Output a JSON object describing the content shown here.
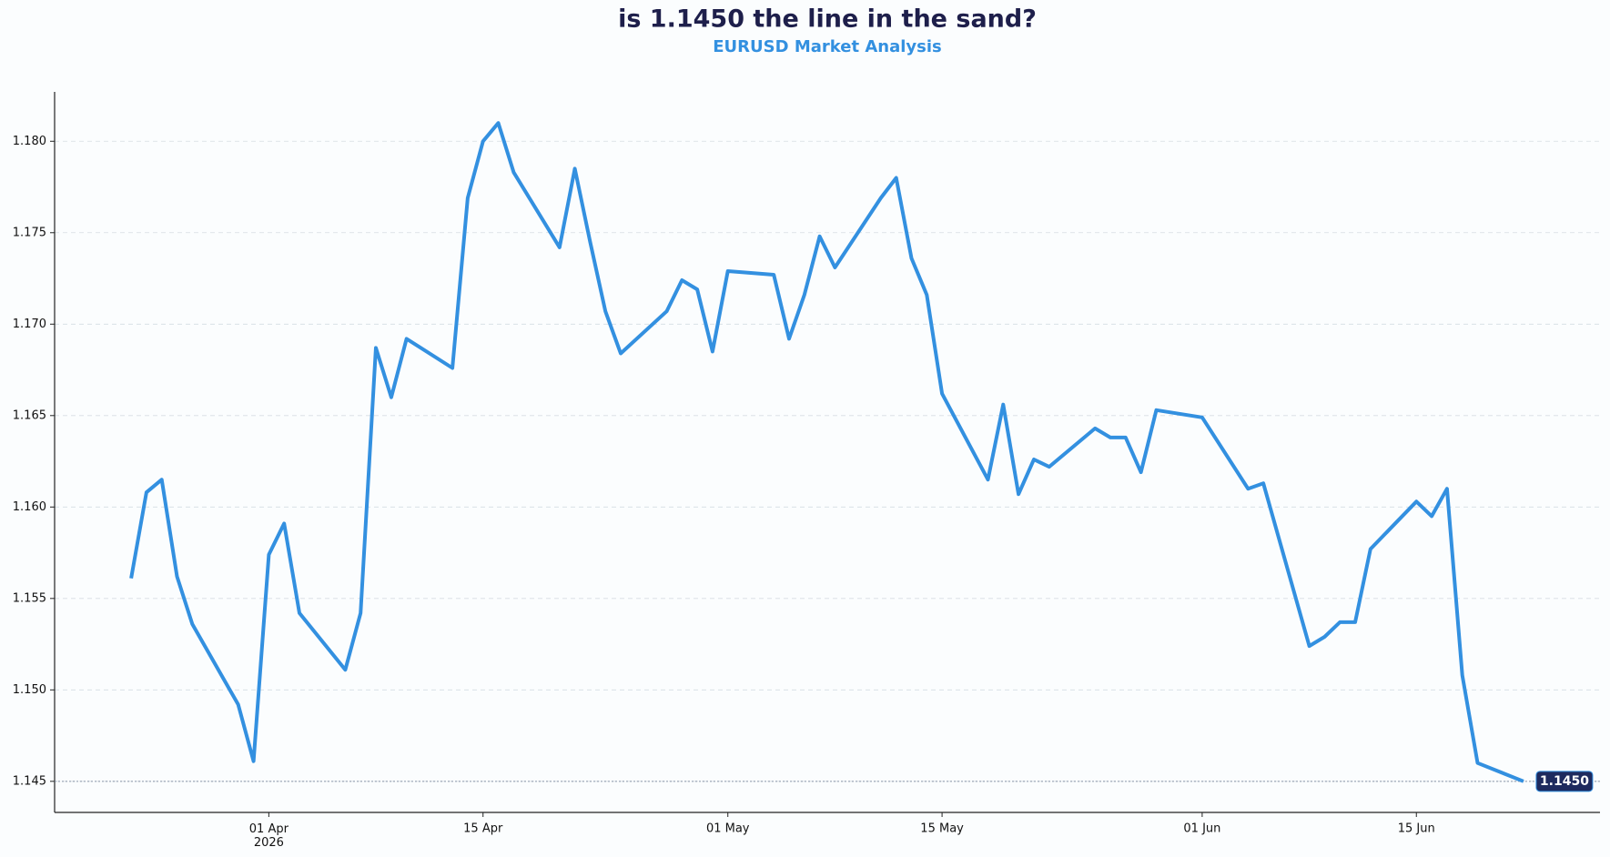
{
  "chart_data": {
    "type": "line",
    "title": "is 1.1450 the line in the sand?",
    "subtitle": "EURUSD Market Analysis",
    "x": [
      "2026-03-23",
      "2026-03-24",
      "2026-03-25",
      "2026-03-26",
      "2026-03-27",
      "2026-03-30",
      "2026-03-31",
      "2026-04-01",
      "2026-04-02",
      "2026-04-03",
      "2026-04-06",
      "2026-04-07",
      "2026-04-08",
      "2026-04-09",
      "2026-04-10",
      "2026-04-13",
      "2026-04-14",
      "2026-04-15",
      "2026-04-16",
      "2026-04-17",
      "2026-04-20",
      "2026-04-21",
      "2026-04-22",
      "2026-04-23",
      "2026-04-24",
      "2026-04-27",
      "2026-04-28",
      "2026-04-29",
      "2026-04-30",
      "2026-05-01",
      "2026-05-04",
      "2026-05-05",
      "2026-05-06",
      "2026-05-07",
      "2026-05-08",
      "2026-05-11",
      "2026-05-12",
      "2026-05-13",
      "2026-05-14",
      "2026-05-15",
      "2026-05-18",
      "2026-05-19",
      "2026-05-20",
      "2026-05-21",
      "2026-05-22",
      "2026-05-25",
      "2026-05-26",
      "2026-05-27",
      "2026-05-28",
      "2026-05-29",
      "2026-06-01",
      "2026-06-04",
      "2026-06-05",
      "2026-06-08",
      "2026-06-09",
      "2026-06-10",
      "2026-06-11",
      "2026-06-12",
      "2026-06-15",
      "2026-06-16",
      "2026-06-17",
      "2026-06-18",
      "2026-06-19",
      "2026-06-22"
    ],
    "series": [
      {
        "name": "EURUSD",
        "color": "#3390e0",
        "values": [
          1.1561,
          1.1608,
          1.1615,
          1.1562,
          1.1536,
          1.1492,
          1.1461,
          1.1574,
          1.1591,
          1.1542,
          1.1511,
          1.1542,
          1.1687,
          1.166,
          1.1692,
          1.1676,
          1.1769,
          1.18,
          1.181,
          1.1783,
          1.1742,
          1.1785,
          1.1745,
          1.1707,
          1.1684,
          1.1707,
          1.1724,
          1.1719,
          1.1685,
          1.1729,
          1.1727,
          1.1692,
          1.1716,
          1.1748,
          1.1731,
          1.1769,
          1.178,
          1.1736,
          1.1716,
          1.1662,
          1.1615,
          1.1656,
          1.1607,
          1.1626,
          1.1622,
          1.1643,
          1.1638,
          1.1638,
          1.1619,
          1.1653,
          1.1649,
          1.161,
          1.1613,
          1.1524,
          1.1529,
          1.1537,
          1.1537,
          1.1577,
          1.1603,
          1.1595,
          1.161,
          1.1508,
          1.146,
          1.145
        ]
      }
    ],
    "xlim": [
      "2026-03-18",
      "2026-06-27"
    ],
    "xticks": [
      {
        "value": "2026-04-01",
        "label": "01 Apr\n2026"
      },
      {
        "value": "2026-04-15",
        "label": "15 Apr"
      },
      {
        "value": "2026-05-01",
        "label": "01 May"
      },
      {
        "value": "2026-05-15",
        "label": "15 May"
      },
      {
        "value": "2026-06-01",
        "label": "01 Jun"
      },
      {
        "value": "2026-06-15",
        "label": "15 Jun"
      }
    ],
    "ylim": [
      1.1433,
      1.1827
    ],
    "yticks": [
      1.145,
      {
        "value": 1.15,
        "label": "1.150"
      },
      1.155,
      {
        "value": 1.16,
        "label": "1.160"
      },
      1.165,
      {
        "value": 1.17,
        "label": "1.170"
      },
      1.175,
      {
        "value": 1.18,
        "label": "1.180"
      }
    ],
    "grid": true,
    "annotations": [
      {
        "text": "1.1450",
        "value": 1.145
      }
    ]
  }
}
